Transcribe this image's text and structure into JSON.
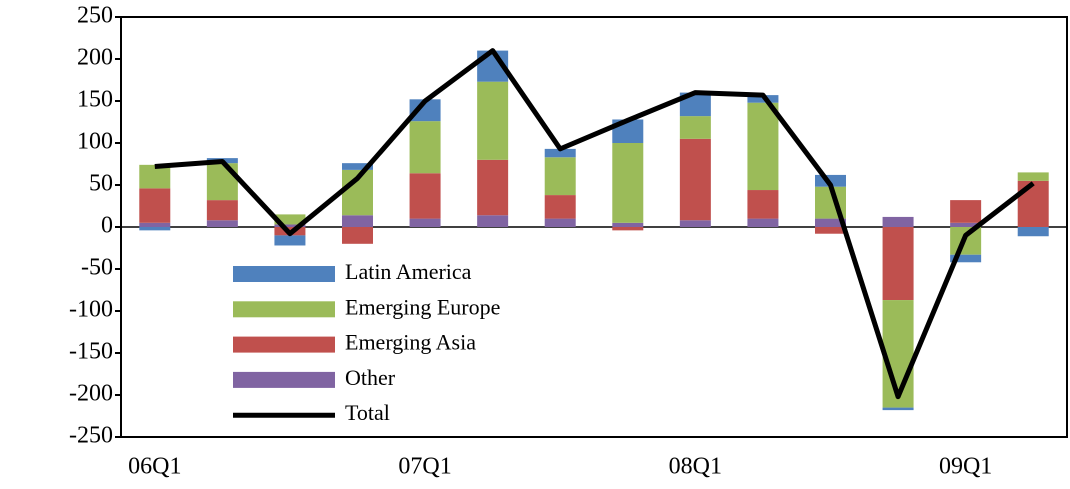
{
  "chart_data": {
    "type": "bar",
    "stacked": true,
    "categories": [
      "06Q1",
      null,
      null,
      null,
      "07Q1",
      null,
      null,
      null,
      "08Q1",
      null,
      null,
      null,
      "09Q1",
      null
    ],
    "series": [
      {
        "name": "Latin America",
        "color": "#4f81bd",
        "values": [
          -4,
          6,
          -12,
          8,
          26,
          37,
          10,
          28,
          28,
          9,
          14,
          -3,
          -9,
          -11
        ]
      },
      {
        "name": "Emerging Europe",
        "color": "#9bbb59",
        "values": [
          28,
          44,
          12,
          54,
          62,
          93,
          45,
          95,
          27,
          104,
          38,
          -128,
          -33,
          10
        ]
      },
      {
        "name": "Emerging Asia",
        "color": "#c0504d",
        "values": [
          41,
          24,
          -10,
          -20,
          54,
          66,
          28,
          -4,
          97,
          34,
          -8,
          -87,
          27,
          55
        ]
      },
      {
        "name": "Other",
        "color": "#8064a2",
        "values": [
          5,
          8,
          3,
          14,
          10,
          14,
          10,
          5,
          8,
          10,
          10,
          12,
          5,
          0
        ]
      },
      {
        "name": "Total",
        "color": "#000000",
        "type": "line",
        "values": [
          72,
          78,
          -8,
          58,
          150,
          210,
          93,
          127,
          160,
          157,
          50,
          -202,
          -10,
          52
        ]
      }
    ],
    "ylim": [
      -250,
      250
    ],
    "yticks": [
      -250,
      -200,
      -150,
      -100,
      -50,
      0,
      50,
      100,
      150,
      200,
      250
    ],
    "legend": "lower left"
  }
}
